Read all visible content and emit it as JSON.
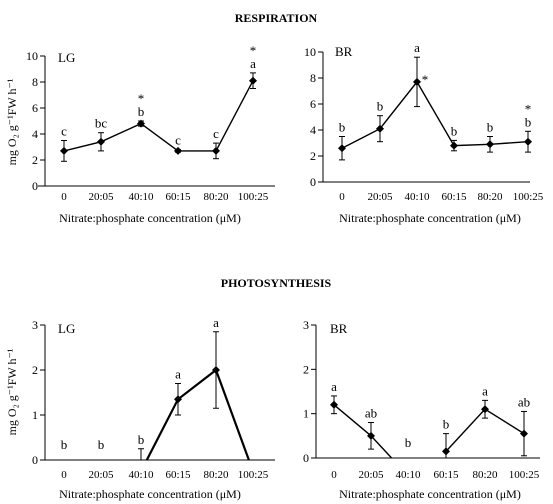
{
  "headings": {
    "top": "RESPIRATION",
    "bottom": "PHOTOSYNTHESIS"
  },
  "ylabel_text": "mg O₂ g⁻¹FW h⁻¹",
  "xlabel_text": "Nitrate:phosphate concentration (μM)",
  "chart_data": [
    {
      "type": "line",
      "panel_label": "LG",
      "section": "RESPIRATION",
      "categories": [
        "0",
        "20:05",
        "40:10",
        "60:15",
        "80:20",
        "100:25"
      ],
      "values": [
        2.7,
        3.4,
        4.8,
        2.7,
        2.7,
        8.1
      ],
      "errors": [
        0.8,
        0.7,
        0.2,
        0.1,
        0.6,
        0.6
      ],
      "letters": [
        "c",
        "bc",
        "b",
        "c",
        "c",
        "a"
      ],
      "stars": [
        false,
        false,
        true,
        false,
        false,
        true
      ],
      "xlabel": "Nitrate:phosphate concentration (μM)",
      "ylabel": "mg O₂ g⁻¹FW h⁻¹",
      "ylim": [
        0,
        10
      ],
      "yticks": [
        0,
        2,
        4,
        6,
        8,
        10
      ]
    },
    {
      "type": "line",
      "panel_label": "BR",
      "section": "RESPIRATION",
      "categories": [
        "0",
        "20:05",
        "40:10",
        "60:15",
        "80:20",
        "100:25"
      ],
      "values": [
        2.6,
        4.1,
        7.7,
        2.8,
        2.9,
        3.1
      ],
      "errors": [
        0.9,
        1.0,
        1.9,
        0.4,
        0.6,
        0.8
      ],
      "letters": [
        "b",
        "b",
        "a",
        "b",
        "b",
        "b"
      ],
      "stars": [
        false,
        false,
        true,
        false,
        false,
        true
      ],
      "xlabel": "Nitrate:phosphate concentration (μM)",
      "ylabel": "",
      "ylim": [
        0,
        10
      ],
      "yticks": [
        0,
        2,
        4,
        6,
        8,
        10
      ]
    },
    {
      "type": "line",
      "panel_label": "LG",
      "section": "PHOTOSYNTHESIS",
      "categories": [
        "0",
        "20:05",
        "40:10",
        "60:15",
        "80:20",
        "100:25"
      ],
      "values": [
        null,
        null,
        -0.25,
        1.35,
        2.0,
        -0.25
      ],
      "errors": [
        0,
        0,
        0.5,
        0.35,
        0.85,
        0
      ],
      "letters": [
        "b",
        "b",
        "b",
        "a",
        "a",
        ""
      ],
      "stars": [
        false,
        false,
        false,
        false,
        false,
        false
      ],
      "xlabel": "Nitrate:phosphate concentration (μM)",
      "ylabel": "mg O₂ g⁻¹FW h⁻¹",
      "ylim": [
        0,
        3
      ],
      "yticks": [
        0,
        1,
        2,
        3
      ]
    },
    {
      "type": "line",
      "panel_label": "BR",
      "section": "PHOTOSYNTHESIS",
      "categories": [
        "0",
        "20:05",
        "40:10",
        "60:15",
        "80:20",
        "100:25"
      ],
      "segments": [
        [
          0,
          1,
          2
        ],
        [
          3,
          4,
          5
        ]
      ],
      "values": [
        1.2,
        0.5,
        -0.4,
        0.15,
        1.1,
        0.55
      ],
      "errors": [
        0.2,
        0.3,
        0,
        0.4,
        0.2,
        0.5
      ],
      "letters": [
        "a",
        "ab",
        "b",
        "b",
        "a",
        "ab"
      ],
      "stars": [
        false,
        false,
        false,
        false,
        false,
        false
      ],
      "xlabel": "Nitrate:phosphate concentration (μM)",
      "ylabel": "",
      "ylim": [
        0,
        3
      ],
      "yticks": [
        0,
        1,
        2,
        3
      ]
    }
  ]
}
